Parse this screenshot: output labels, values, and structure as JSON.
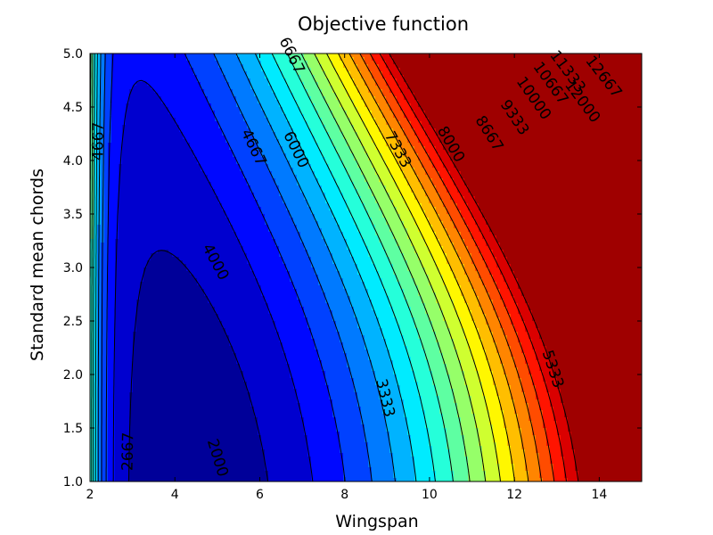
{
  "chart_data": {
    "type": "contour",
    "title": "Objective function",
    "xlabel": "Wingspan",
    "ylabel": "Standard mean chords",
    "xlim": [
      2,
      15
    ],
    "ylim": [
      1.0,
      5.0
    ],
    "x_ticks": [
      "2",
      "4",
      "6",
      "8",
      "10",
      "12",
      "14"
    ],
    "y_ticks": [
      "1.0",
      "1.5",
      "2.0",
      "2.5",
      "3.0",
      "3.5",
      "4.0",
      "4.5",
      "5.0"
    ],
    "colormap": "jet",
    "levels": [
      2000,
      2667,
      3333,
      4000,
      4667,
      5333,
      6000,
      6667,
      7333,
      8000,
      8667,
      9333,
      10000,
      10667,
      11333,
      12000,
      12667
    ],
    "contour_labels": [
      {
        "text": "2000",
        "x": 5.0,
        "y": 1.22
      },
      {
        "text": "2667",
        "x": 2.9,
        "y": 1.28
      },
      {
        "text": "3333",
        "x": 8.95,
        "y": 1.78
      },
      {
        "text": "4000",
        "x": 4.95,
        "y": 3.05
      },
      {
        "text": "4667",
        "x": 2.2,
        "y": 4.18
      },
      {
        "text": "4667",
        "x": 5.85,
        "y": 4.12
      },
      {
        "text": "5333",
        "x": 12.9,
        "y": 2.05
      },
      {
        "text": "6000",
        "x": 6.85,
        "y": 4.1
      },
      {
        "text": "6667",
        "x": 6.75,
        "y": 4.98
      },
      {
        "text": "7333",
        "x": 9.25,
        "y": 4.1
      },
      {
        "text": "8000",
        "x": 10.5,
        "y": 4.15
      },
      {
        "text": "8667",
        "x": 11.4,
        "y": 4.25
      },
      {
        "text": "9333",
        "x": 12.0,
        "y": 4.4
      },
      {
        "text": "10000",
        "x": 12.45,
        "y": 4.58
      },
      {
        "text": "10667",
        "x": 12.85,
        "y": 4.72
      },
      {
        "text": "11333",
        "x": 13.25,
        "y": 4.83
      },
      {
        "text": "12000",
        "x": 13.6,
        "y": 4.55
      },
      {
        "text": "12667",
        "x": 14.1,
        "y": 4.78
      }
    ]
  }
}
